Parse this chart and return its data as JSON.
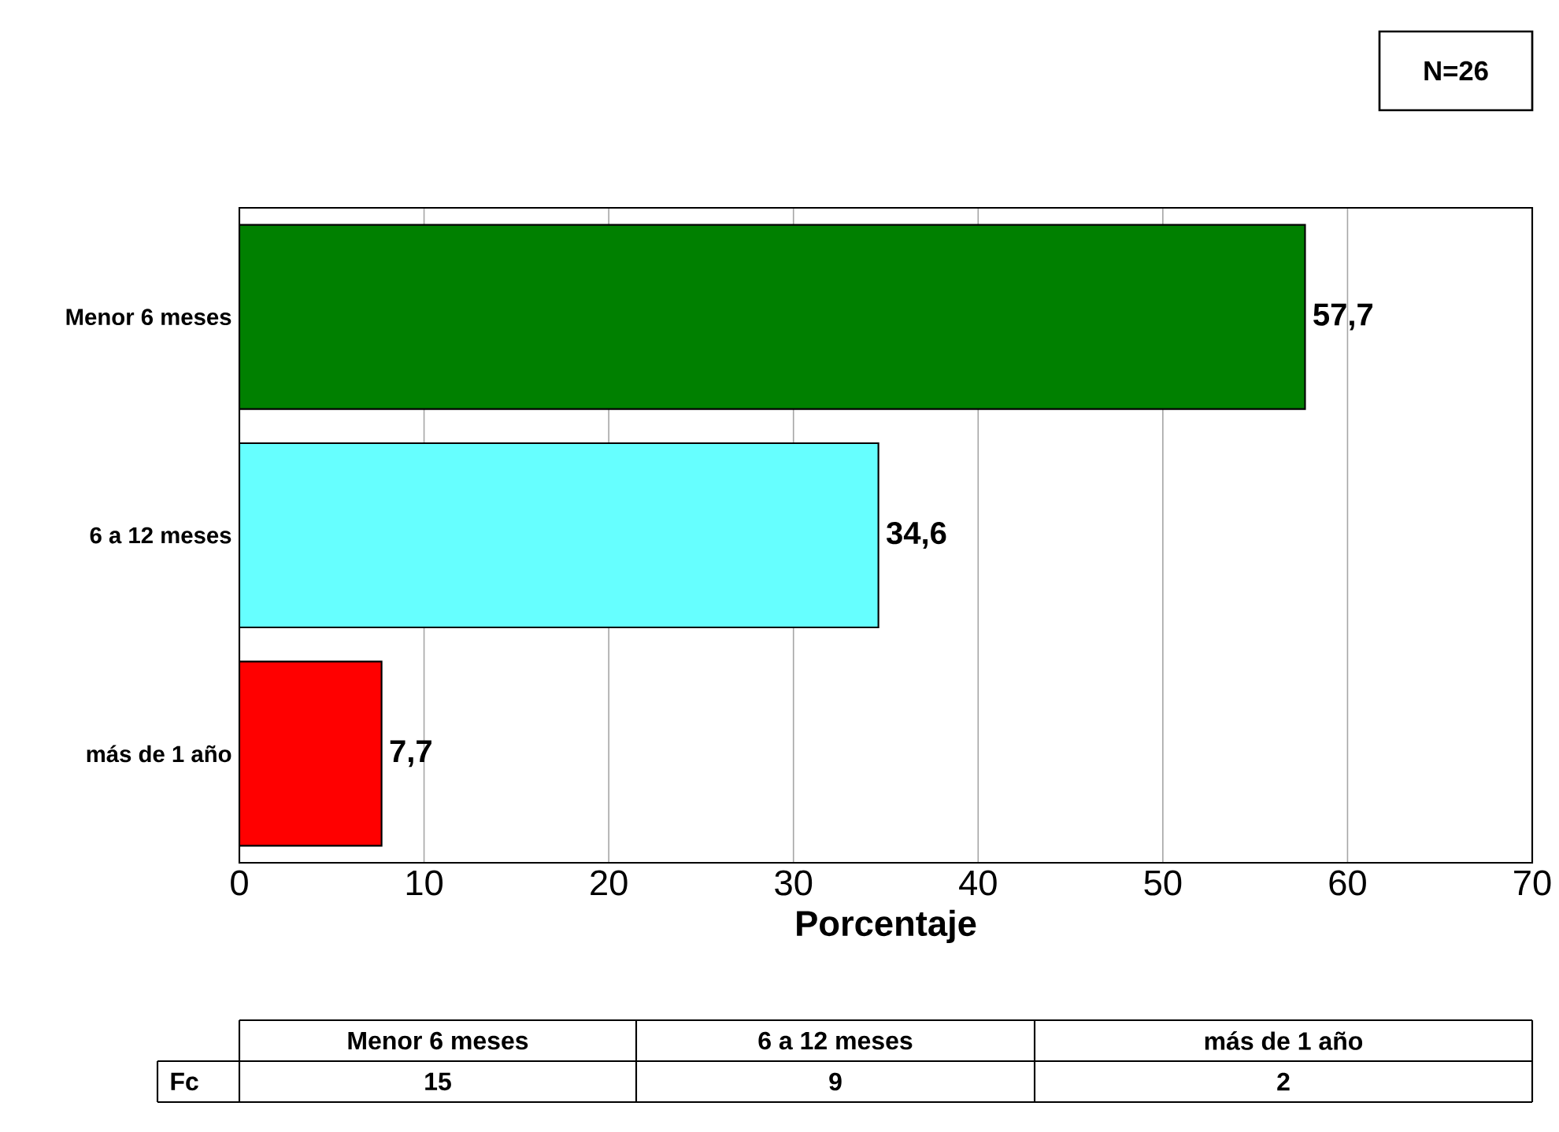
{
  "chart_data": {
    "type": "bar",
    "orientation": "horizontal",
    "xlabel": "Porcentaje",
    "categories": [
      "Menor 6 meses",
      "6 a 12 meses",
      "más de 1 año"
    ],
    "values": [
      57.7,
      34.6,
      7.7
    ],
    "value_labels": [
      "57,7",
      "34,6",
      "7,7"
    ],
    "colors": [
      "#008000",
      "#66ffff",
      "#ff0000"
    ],
    "xlim": [
      0,
      70
    ],
    "xticks": [
      0,
      10,
      20,
      30,
      40,
      50,
      60,
      70
    ],
    "grid": "x",
    "annotations": [
      "N=26",
      "Fc",
      "15",
      "9",
      "2"
    ]
  }
}
